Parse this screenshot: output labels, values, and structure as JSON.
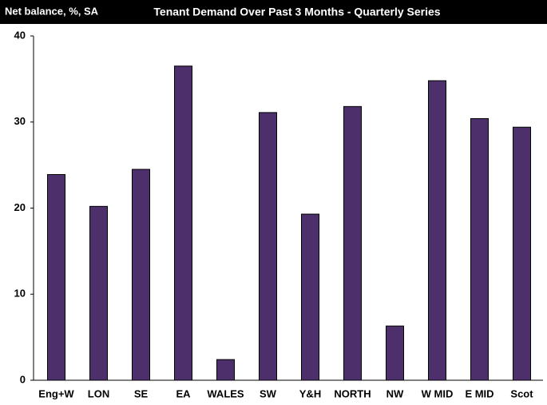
{
  "chart_data": {
    "type": "bar",
    "title": "Tenant Demand Over Past 3 Months - Quarterly Series",
    "y_axis_label": "Net balance, %, SA",
    "categories": [
      "Eng+W",
      "LON",
      "SE",
      "EA",
      "WALES",
      "SW",
      "Y&H",
      "NORTH",
      "NW",
      "W MID",
      "E MID",
      "Scot"
    ],
    "values": [
      23.9,
      20.2,
      24.5,
      36.5,
      2.4,
      31.1,
      19.3,
      31.8,
      6.3,
      34.8,
      30.4,
      29.4
    ],
    "color": "#4d2f6b",
    "ylim": [
      0,
      40
    ],
    "yticks": [
      0,
      10,
      20,
      30,
      40
    ],
    "grid": false
  }
}
